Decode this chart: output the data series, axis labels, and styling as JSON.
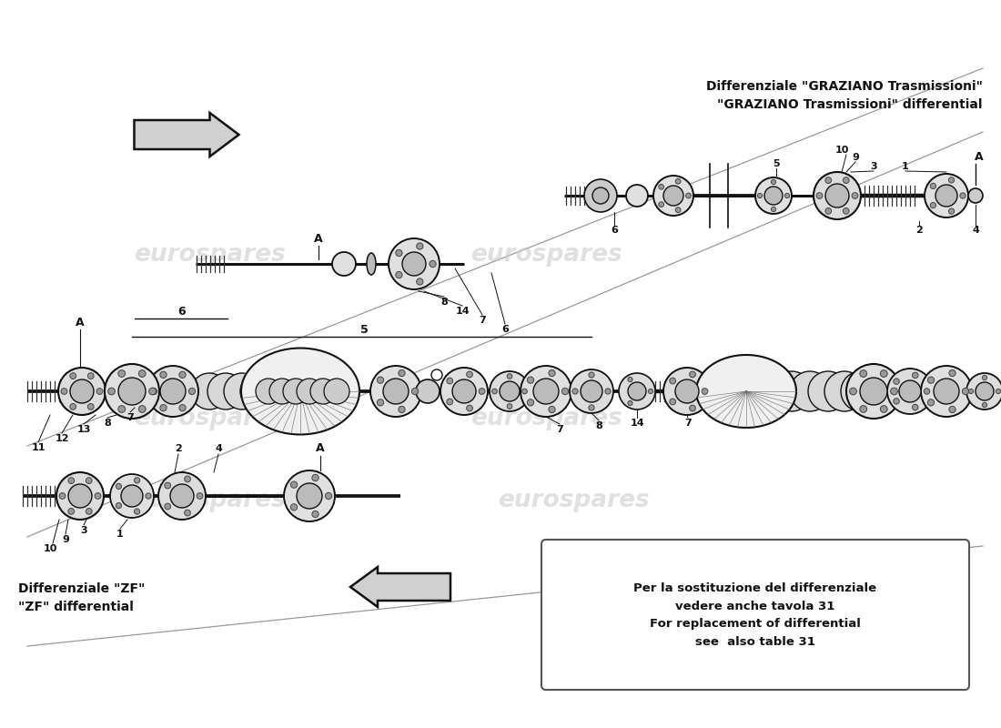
{
  "background_color": "#ffffff",
  "watermark_text": "eurospares",
  "watermark_color": "#cccccc",
  "top_right_label_line1": "Differenziale \"GRAZIANO Trasmissioni\"",
  "top_right_label_line2": "\"GRAZIANO Trasmissioni\" differential",
  "bottom_left_label_line1": "Differenziale \"ZF\"",
  "bottom_left_label_line2": "\"ZF\" differential",
  "note_line1": "Per la sostituzione del differenziale",
  "note_line2": "vedere anche tavola 31",
  "note_line3": "For replacement of differential",
  "note_line4": "see  also table 31",
  "text_color": "#111111",
  "label_fontsize": 10,
  "note_fontsize": 9.5,
  "num_fontsize": 8
}
